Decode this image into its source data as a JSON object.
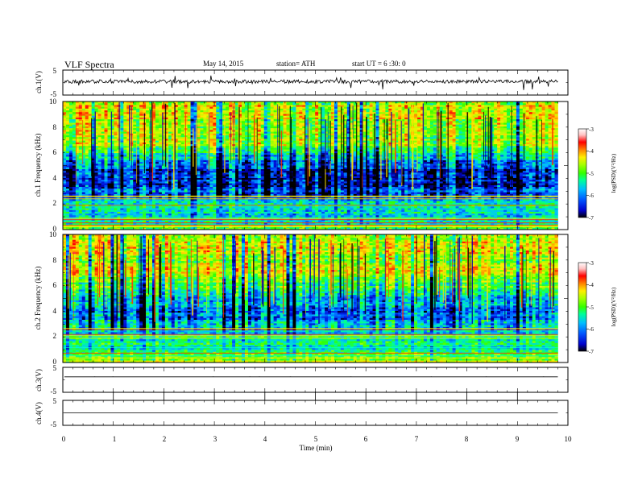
{
  "header": {
    "title": "VLF  Spectra",
    "date": "May 14, 2015",
    "station": "station= ATH",
    "start": "start  UT  =   6  :30: 0"
  },
  "colors": {
    "colormap": [
      "#000000",
      "#0000cc",
      "#0055ff",
      "#00bfff",
      "#00ff99",
      "#33ff00",
      "#aaff00",
      "#ffee00",
      "#ff8800",
      "#ff0000",
      "#ffc0c0",
      "#ffffff"
    ],
    "trace": "#000000"
  },
  "chart_data": [
    {
      "type": "line",
      "id": "ch1",
      "ylabel": "ch.1(V)",
      "ylim": [
        -5,
        5
      ],
      "yticks": [
        "5",
        "-5"
      ],
      "xlim": [
        0,
        10
      ],
      "trace": {
        "baseline": 0.4,
        "amplitude": 0.7
      }
    },
    {
      "type": "heatmap",
      "id": "spec1",
      "ylabel": "ch.1\nFrequency (kHz)",
      "ylim": [
        0,
        10
      ],
      "yticks": [
        "10",
        "8",
        "6",
        "4",
        "2",
        "0"
      ],
      "xlim": [
        0,
        10
      ],
      "data_end_min": 9.8,
      "colorbar": {
        "label": "log(PSD)(V²/Hz)",
        "ticks": [
          "-3",
          "-4",
          "-5",
          "-6",
          "-7"
        ],
        "range": [
          -7,
          -3
        ]
      },
      "profile_khz": [
        0,
        0.3,
        0.6,
        1.0,
        1.5,
        2.0,
        2.5,
        3.0,
        3.5,
        4.0,
        4.5,
        5.0,
        5.5,
        6.0,
        6.5,
        7.0,
        8.0,
        9.0,
        10.0
      ],
      "profile_log_psd": [
        -5.0,
        -5.4,
        -5.5,
        -5.7,
        -5.9,
        -5.5,
        -6.2,
        -6.3,
        -6.5,
        -6.6,
        -6.6,
        -6.3,
        -6.0,
        -5.4,
        -5.1,
        -4.8,
        -4.9,
        -4.6,
        -4.7
      ]
    },
    {
      "type": "heatmap",
      "id": "spec2",
      "ylabel": "ch.2\nFrequency (kHz)",
      "ylim": [
        0,
        10
      ],
      "yticks": [
        "10",
        "8",
        "6",
        "4",
        "2",
        "0"
      ],
      "xlim": [
        0,
        10
      ],
      "data_end_min": 9.8,
      "colorbar": {
        "label": "log(PSD)(V²/Hz)",
        "ticks": [
          "-3",
          "-4",
          "-5",
          "-6",
          "-7"
        ],
        "range": [
          -7,
          -3
        ]
      },
      "profile_khz": [
        0,
        0.5,
        1.0,
        1.5,
        2.0,
        2.5,
        3.0,
        3.5,
        4.0,
        4.5,
        5.0,
        5.5,
        6.0,
        6.5,
        7.0,
        8.0,
        9.0,
        10.0
      ],
      "profile_log_psd": [
        -4.9,
        -5.3,
        -5.5,
        -5.6,
        -5.5,
        -5.9,
        -6.0,
        -6.2,
        -6.3,
        -6.1,
        -5.9,
        -5.6,
        -5.3,
        -5.0,
        -4.8,
        -4.9,
        -4.6,
        -4.7
      ]
    },
    {
      "type": "line",
      "id": "ch3",
      "ylabel": "ch.3(V)",
      "ylim": [
        -5,
        5
      ],
      "yticks": [
        "5",
        "-5"
      ],
      "xlim": [
        0,
        10
      ],
      "trace": {
        "baseline": 1.2,
        "amplitude": 0.05
      }
    },
    {
      "type": "line",
      "id": "ch4",
      "ylabel": "ch.4(V)",
      "ylim": [
        -5,
        5
      ],
      "yticks": [
        "5",
        "-5"
      ],
      "xlim": [
        0,
        10
      ],
      "xlabel": "Time  (min)",
      "xticks": [
        "0",
        "1",
        "2",
        "3",
        "4",
        "5",
        "6",
        "7",
        "8",
        "9",
        "10"
      ],
      "trace": {
        "baseline": 0,
        "amplitude": 0.0
      }
    }
  ]
}
